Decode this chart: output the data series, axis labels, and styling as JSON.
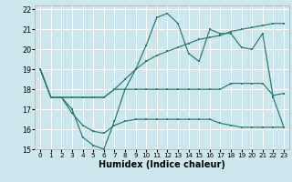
{
  "xlabel": "Humidex (Indice chaleur)",
  "bg_color": "#cce8ee",
  "grid_color": "#ffffff",
  "line_color": "#2e7d72",
  "xlim": [
    -0.5,
    23.5
  ],
  "ylim": [
    15,
    22.2
  ],
  "xticks": [
    0,
    1,
    2,
    3,
    4,
    5,
    6,
    7,
    8,
    9,
    10,
    11,
    12,
    13,
    14,
    15,
    16,
    17,
    18,
    19,
    20,
    21,
    22,
    23
  ],
  "yticks": [
    15,
    16,
    17,
    18,
    19,
    20,
    21,
    22
  ],
  "line1_x": [
    0,
    1,
    2,
    3,
    4,
    5,
    6,
    7,
    8,
    9,
    10,
    11,
    12,
    13,
    14,
    15,
    16,
    17,
    18,
    19,
    20,
    21,
    22,
    23
  ],
  "line1_y": [
    19,
    17.6,
    17.6,
    17.0,
    15.6,
    15.2,
    15.0,
    16.4,
    18.0,
    19.0,
    20.2,
    21.6,
    21.8,
    21.3,
    19.8,
    19.4,
    21.0,
    20.8,
    20.8,
    20.1,
    20.0,
    20.8,
    17.6,
    16.1
  ],
  "line2_x": [
    0,
    1,
    2,
    3,
    4,
    5,
    6,
    7,
    8,
    9,
    10,
    11,
    12,
    13,
    14,
    15,
    16,
    17,
    18,
    19,
    20,
    21,
    22,
    23
  ],
  "line2_y": [
    19,
    17.6,
    17.6,
    16.8,
    16.2,
    15.9,
    15.8,
    16.2,
    16.4,
    16.5,
    16.5,
    16.5,
    16.5,
    16.5,
    16.5,
    16.5,
    16.5,
    16.3,
    16.2,
    16.1,
    16.1,
    16.1,
    16.1,
    16.1
  ],
  "line3_x": [
    0,
    1,
    2,
    3,
    4,
    5,
    6,
    7,
    8,
    9,
    10,
    11,
    12,
    13,
    14,
    15,
    16,
    17,
    18,
    19,
    20,
    21,
    22,
    23
  ],
  "line3_y": [
    19,
    17.6,
    17.6,
    17.6,
    17.6,
    17.6,
    17.6,
    18.0,
    18.5,
    19.0,
    19.4,
    19.7,
    19.9,
    20.1,
    20.3,
    20.5,
    20.6,
    20.7,
    20.9,
    21.0,
    21.1,
    21.2,
    21.3,
    21.3
  ],
  "line4_x": [
    0,
    1,
    2,
    3,
    4,
    5,
    6,
    7,
    8,
    9,
    10,
    11,
    12,
    13,
    14,
    15,
    16,
    17,
    18,
    19,
    20,
    21,
    22,
    23
  ],
  "line4_y": [
    19,
    17.6,
    17.6,
    17.6,
    17.6,
    17.6,
    17.6,
    18.0,
    18.0,
    18.0,
    18.0,
    18.0,
    18.0,
    18.0,
    18.0,
    18.0,
    18.0,
    18.0,
    18.3,
    18.3,
    18.3,
    18.3,
    17.7,
    17.8
  ]
}
